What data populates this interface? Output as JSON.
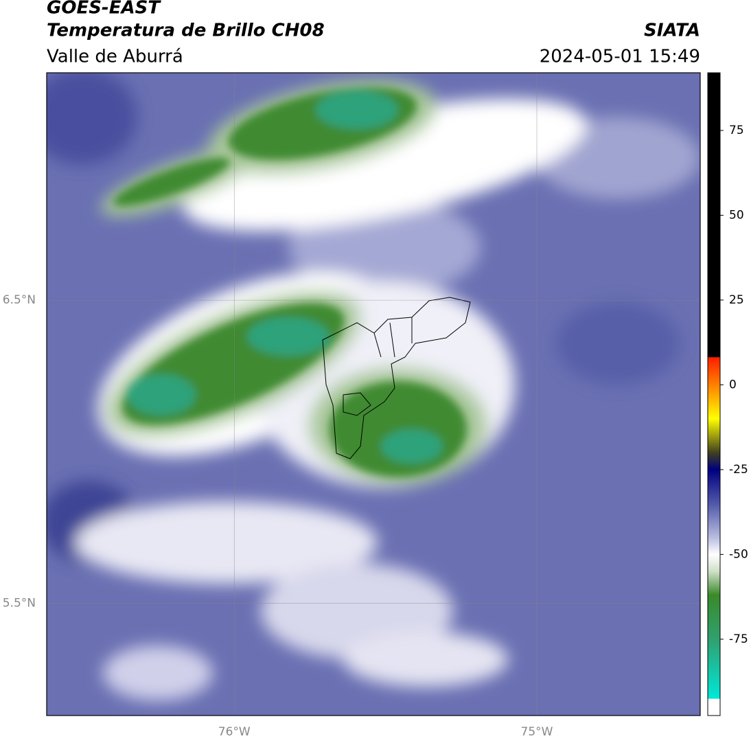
{
  "chart_data": {
    "type": "map",
    "title": "GOES-EAST",
    "subtitle": "Temperatura de Brillo CH08",
    "source": "SIATA",
    "region": "Valle de Aburrá",
    "datetime": "2024-05-01 15:49",
    "xlim": [
      -76.62,
      -74.46
    ],
    "ylim": [
      5.13,
      7.25
    ],
    "xticks": [
      {
        "value": -76,
        "label": "76°W"
      },
      {
        "value": -75,
        "label": "75°W"
      }
    ],
    "yticks": [
      {
        "value": 5.5,
        "label": "5.5°N"
      },
      {
        "value": 6.5,
        "label": "6.5°N"
      }
    ],
    "grid": true,
    "colorbar": {
      "lim": [
        -97.5,
        92
      ],
      "ticks": [
        -75,
        -50,
        -25,
        0,
        25,
        50,
        75
      ],
      "stops": [
        {
          "value": 92,
          "color": "#000000"
        },
        {
          "value": 8.3,
          "color": "#000000"
        },
        {
          "value": 8,
          "color": "#ff2000"
        },
        {
          "value": 0,
          "color": "#ff8000"
        },
        {
          "value": -10,
          "color": "#ffff00"
        },
        {
          "value": -20,
          "color": "#404020"
        },
        {
          "value": -25,
          "color": "#000080"
        },
        {
          "value": -35,
          "color": "#5058a8"
        },
        {
          "value": -45,
          "color": "#b8bce0"
        },
        {
          "value": -50,
          "color": "#ffffff"
        },
        {
          "value": -55,
          "color": "#d0e0c8"
        },
        {
          "value": -62,
          "color": "#3a8a2a"
        },
        {
          "value": -75,
          "color": "#30a070"
        },
        {
          "value": -92.5,
          "color": "#00e8d8"
        },
        {
          "value": -92.6,
          "color": "#ffffff"
        },
        {
          "value": -97.5,
          "color": "#ffffff"
        }
      ]
    }
  }
}
